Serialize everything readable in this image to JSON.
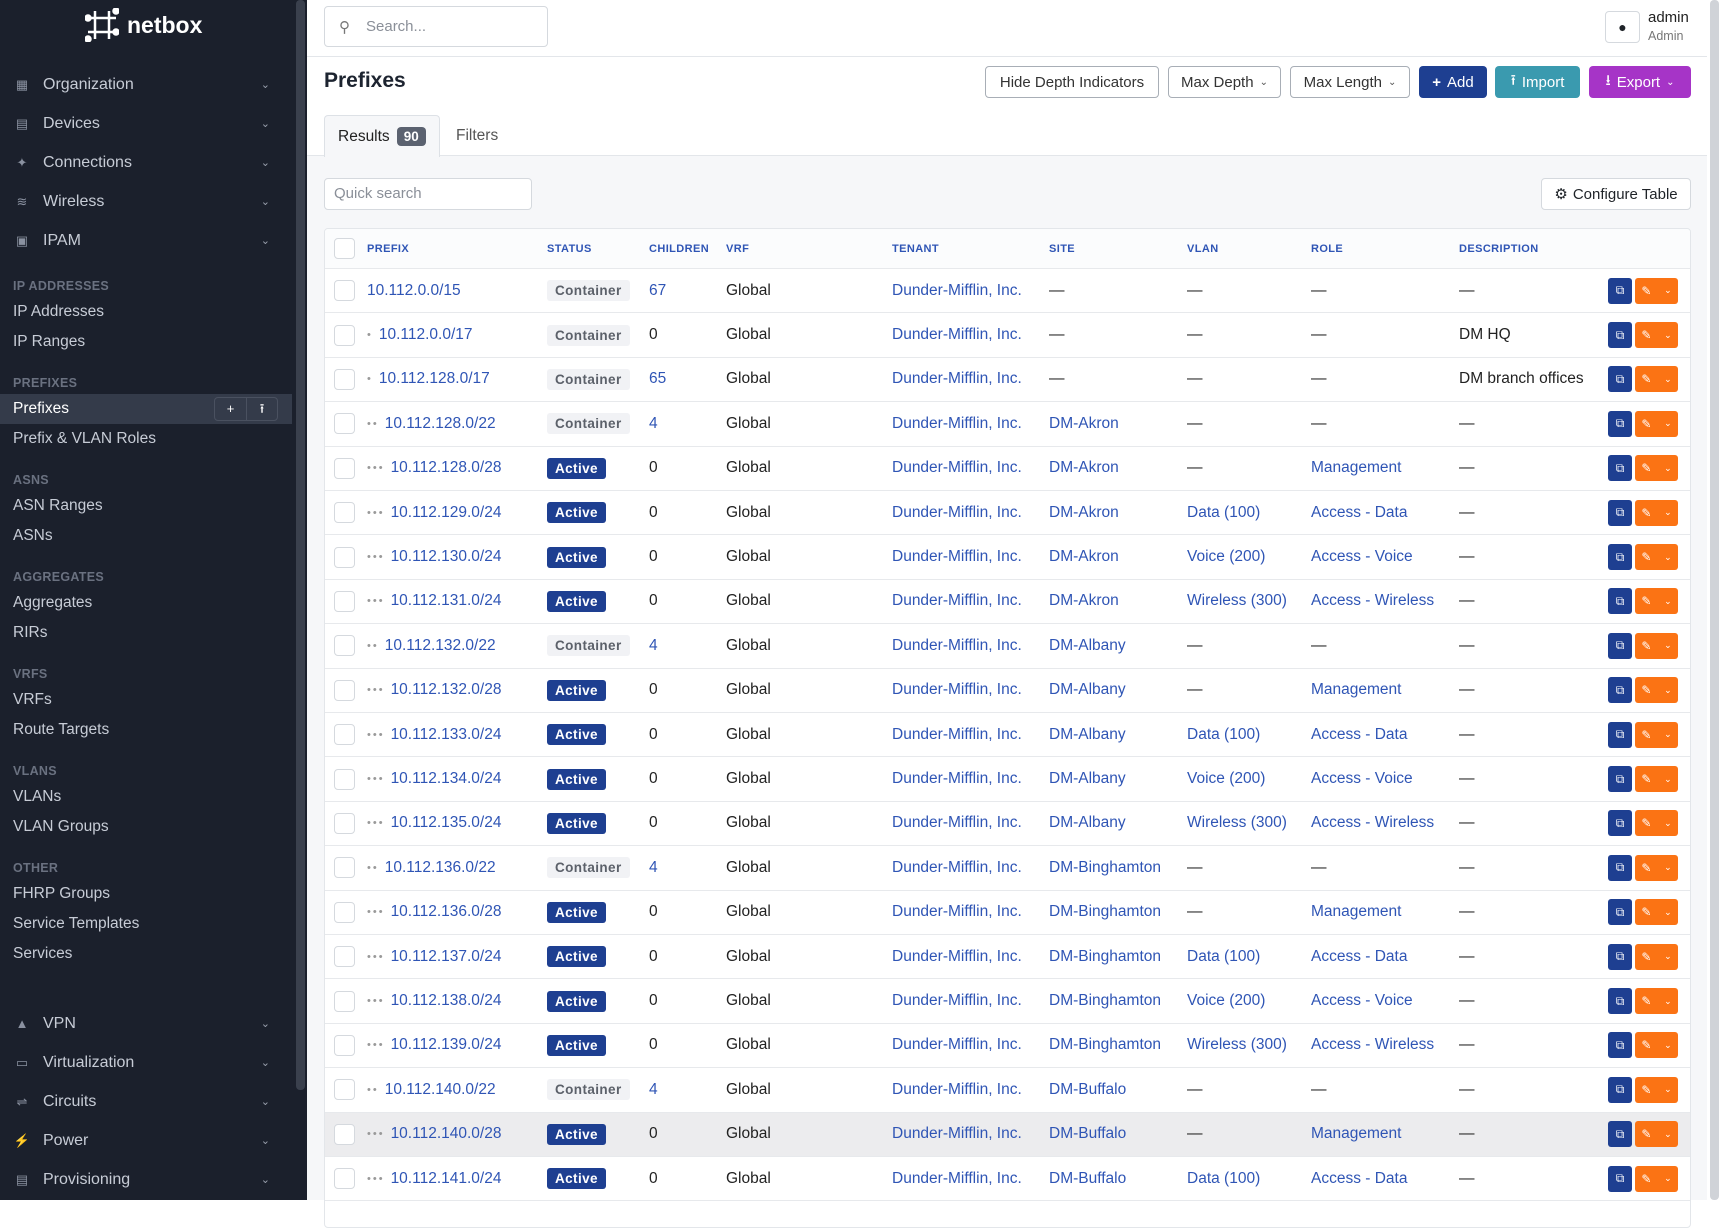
{
  "app": {
    "logo": "netbox"
  },
  "sidebar": {
    "top": [
      {
        "label": "Organization",
        "icon": "building-icon"
      },
      {
        "label": "Devices",
        "icon": "server-icon"
      },
      {
        "label": "Connections",
        "icon": "plug-icon"
      },
      {
        "label": "Wireless",
        "icon": "wifi-icon"
      },
      {
        "label": "IPAM",
        "icon": "counter-icon"
      }
    ],
    "sections": [
      {
        "title": "IP ADDRESSES",
        "items": [
          "IP Addresses",
          "IP Ranges"
        ]
      },
      {
        "title": "PREFIXES",
        "items": [
          "Prefixes",
          "Prefix & VLAN Roles"
        ]
      },
      {
        "title": "ASNS",
        "items": [
          "ASN Ranges",
          "ASNs"
        ]
      },
      {
        "title": "AGGREGATES",
        "items": [
          "Aggregates",
          "RIRs"
        ]
      },
      {
        "title": "VRFS",
        "items": [
          "VRFs",
          "Route Targets"
        ]
      },
      {
        "title": "VLANS",
        "items": [
          "VLANs",
          "VLAN Groups"
        ]
      },
      {
        "title": "OTHER",
        "items": [
          "FHRP Groups",
          "Service Templates",
          "Services"
        ]
      }
    ],
    "active": "Prefixes",
    "bottom": [
      {
        "label": "VPN",
        "icon": "vpn-icon"
      },
      {
        "label": "Virtualization",
        "icon": "monitor-icon"
      },
      {
        "label": "Circuits",
        "icon": "circuit-icon"
      },
      {
        "label": "Power",
        "icon": "power-icon"
      },
      {
        "label": "Provisioning",
        "icon": "file-icon"
      }
    ]
  },
  "topbar": {
    "search_placeholder": "Search...",
    "user": "admin",
    "role": "Admin"
  },
  "page": {
    "title": "Prefixes",
    "buttons": {
      "hide_depth": "Hide Depth Indicators",
      "max_depth": "Max Depth",
      "max_length": "Max Length",
      "add": "Add",
      "import": "Import",
      "export": "Export"
    },
    "tabs": {
      "results": "Results",
      "count": "90",
      "filters": "Filters"
    },
    "quick_search_placeholder": "Quick search",
    "configure": "Configure Table"
  },
  "colors": {
    "add": "#1e3f91",
    "import": "#3a9aaf",
    "export": "#a634c7",
    "edit": "#fb7314",
    "link": "#2f55b5",
    "sidebar": "#1b202c"
  },
  "table": {
    "columns": [
      "PREFIX",
      "STATUS",
      "CHILDREN",
      "VRF",
      "TENANT",
      "SITE",
      "VLAN",
      "ROLE",
      "DESCRIPTION"
    ],
    "rows": [
      {
        "depth": 0,
        "prefix": "10.112.0.0/15",
        "status": "Container",
        "children": "67",
        "vrf": "Global",
        "tenant": "Dunder-Mifflin, Inc.",
        "site": "—",
        "vlan": "—",
        "role": "—",
        "description": "—"
      },
      {
        "depth": 1,
        "prefix": "10.112.0.0/17",
        "status": "Container",
        "children": "0",
        "vrf": "Global",
        "tenant": "Dunder-Mifflin, Inc.",
        "site": "—",
        "vlan": "—",
        "role": "—",
        "description": "DM HQ"
      },
      {
        "depth": 1,
        "prefix": "10.112.128.0/17",
        "status": "Container",
        "children": "65",
        "vrf": "Global",
        "tenant": "Dunder-Mifflin, Inc.",
        "site": "—",
        "vlan": "—",
        "role": "—",
        "description": "DM branch offices"
      },
      {
        "depth": 2,
        "prefix": "10.112.128.0/22",
        "status": "Container",
        "children": "4",
        "vrf": "Global",
        "tenant": "Dunder-Mifflin, Inc.",
        "site": "DM-Akron",
        "vlan": "—",
        "role": "—",
        "description": "—"
      },
      {
        "depth": 3,
        "prefix": "10.112.128.0/28",
        "status": "Active",
        "children": "0",
        "vrf": "Global",
        "tenant": "Dunder-Mifflin, Inc.",
        "site": "DM-Akron",
        "vlan": "—",
        "role": "Management",
        "description": "—"
      },
      {
        "depth": 3,
        "prefix": "10.112.129.0/24",
        "status": "Active",
        "children": "0",
        "vrf": "Global",
        "tenant": "Dunder-Mifflin, Inc.",
        "site": "DM-Akron",
        "vlan": "Data (100)",
        "role": "Access - Data",
        "description": "—"
      },
      {
        "depth": 3,
        "prefix": "10.112.130.0/24",
        "status": "Active",
        "children": "0",
        "vrf": "Global",
        "tenant": "Dunder-Mifflin, Inc.",
        "site": "DM-Akron",
        "vlan": "Voice (200)",
        "role": "Access - Voice",
        "description": "—"
      },
      {
        "depth": 3,
        "prefix": "10.112.131.0/24",
        "status": "Active",
        "children": "0",
        "vrf": "Global",
        "tenant": "Dunder-Mifflin, Inc.",
        "site": "DM-Akron",
        "vlan": "Wireless (300)",
        "role": "Access - Wireless",
        "description": "—"
      },
      {
        "depth": 2,
        "prefix": "10.112.132.0/22",
        "status": "Container",
        "children": "4",
        "vrf": "Global",
        "tenant": "Dunder-Mifflin, Inc.",
        "site": "DM-Albany",
        "vlan": "—",
        "role": "—",
        "description": "—"
      },
      {
        "depth": 3,
        "prefix": "10.112.132.0/28",
        "status": "Active",
        "children": "0",
        "vrf": "Global",
        "tenant": "Dunder-Mifflin, Inc.",
        "site": "DM-Albany",
        "vlan": "—",
        "role": "Management",
        "description": "—"
      },
      {
        "depth": 3,
        "prefix": "10.112.133.0/24",
        "status": "Active",
        "children": "0",
        "vrf": "Global",
        "tenant": "Dunder-Mifflin, Inc.",
        "site": "DM-Albany",
        "vlan": "Data (100)",
        "role": "Access - Data",
        "description": "—"
      },
      {
        "depth": 3,
        "prefix": "10.112.134.0/24",
        "status": "Active",
        "children": "0",
        "vrf": "Global",
        "tenant": "Dunder-Mifflin, Inc.",
        "site": "DM-Albany",
        "vlan": "Voice (200)",
        "role": "Access - Voice",
        "description": "—"
      },
      {
        "depth": 3,
        "prefix": "10.112.135.0/24",
        "status": "Active",
        "children": "0",
        "vrf": "Global",
        "tenant": "Dunder-Mifflin, Inc.",
        "site": "DM-Albany",
        "vlan": "Wireless (300)",
        "role": "Access - Wireless",
        "description": "—"
      },
      {
        "depth": 2,
        "prefix": "10.112.136.0/22",
        "status": "Container",
        "children": "4",
        "vrf": "Global",
        "tenant": "Dunder-Mifflin, Inc.",
        "site": "DM-Binghamton",
        "vlan": "—",
        "role": "—",
        "description": "—"
      },
      {
        "depth": 3,
        "prefix": "10.112.136.0/28",
        "status": "Active",
        "children": "0",
        "vrf": "Global",
        "tenant": "Dunder-Mifflin, Inc.",
        "site": "DM-Binghamton",
        "vlan": "—",
        "role": "Management",
        "description": "—"
      },
      {
        "depth": 3,
        "prefix": "10.112.137.0/24",
        "status": "Active",
        "children": "0",
        "vrf": "Global",
        "tenant": "Dunder-Mifflin, Inc.",
        "site": "DM-Binghamton",
        "vlan": "Data (100)",
        "role": "Access - Data",
        "description": "—"
      },
      {
        "depth": 3,
        "prefix": "10.112.138.0/24",
        "status": "Active",
        "children": "0",
        "vrf": "Global",
        "tenant": "Dunder-Mifflin, Inc.",
        "site": "DM-Binghamton",
        "vlan": "Voice (200)",
        "role": "Access - Voice",
        "description": "—"
      },
      {
        "depth": 3,
        "prefix": "10.112.139.0/24",
        "status": "Active",
        "children": "0",
        "vrf": "Global",
        "tenant": "Dunder-Mifflin, Inc.",
        "site": "DM-Binghamton",
        "vlan": "Wireless (300)",
        "role": "Access - Wireless",
        "description": "—"
      },
      {
        "depth": 2,
        "prefix": "10.112.140.0/22",
        "status": "Container",
        "children": "4",
        "vrf": "Global",
        "tenant": "Dunder-Mifflin, Inc.",
        "site": "DM-Buffalo",
        "vlan": "—",
        "role": "—",
        "description": "—"
      },
      {
        "depth": 3,
        "prefix": "10.112.140.0/28",
        "status": "Active",
        "children": "0",
        "vrf": "Global",
        "tenant": "Dunder-Mifflin, Inc.",
        "site": "DM-Buffalo",
        "vlan": "—",
        "role": "Management",
        "description": "—",
        "hover": true
      },
      {
        "depth": 3,
        "prefix": "10.112.141.0/24",
        "status": "Active",
        "children": "0",
        "vrf": "Global",
        "tenant": "Dunder-Mifflin, Inc.",
        "site": "DM-Buffalo",
        "vlan": "Data (100)",
        "role": "Access - Data",
        "description": "—"
      }
    ]
  }
}
